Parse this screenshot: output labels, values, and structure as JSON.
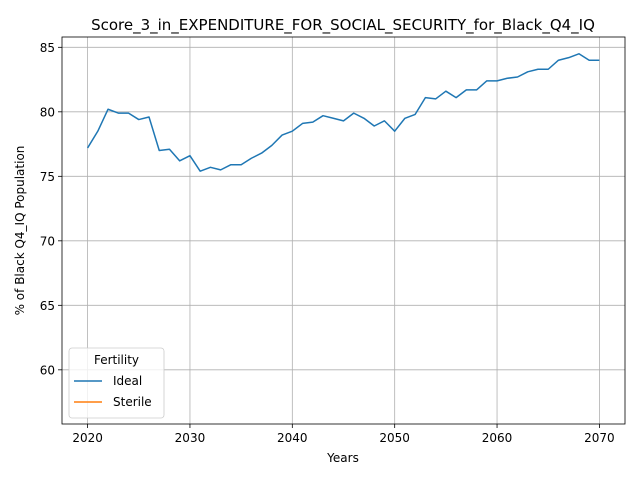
{
  "chart_data": {
    "type": "line",
    "title": "Score_3_in_EXPENDITURE_FOR_SOCIAL_SECURITY_for_Black_Q4_IQ",
    "xlabel": "Years",
    "ylabel": "% of Black Q4_IQ Population",
    "xlim": [
      2017.5,
      2072.5
    ],
    "ylim": [
      55.8,
      85.8
    ],
    "xticks": [
      2020,
      2030,
      2040,
      2050,
      2060,
      2070
    ],
    "yticks": [
      60,
      65,
      70,
      75,
      80,
      85
    ],
    "grid": true,
    "legend": {
      "title": "Fertility",
      "placement": "lower-left"
    },
    "series": [
      {
        "name": "Ideal",
        "color": "#1f77b4",
        "x": [
          2020,
          2021,
          2022,
          2023,
          2024,
          2025,
          2026,
          2027,
          2028,
          2029,
          2030,
          2031,
          2032,
          2033,
          2034,
          2035,
          2036,
          2037,
          2038,
          2039,
          2040,
          2041,
          2042,
          2043,
          2044,
          2045,
          2046,
          2047,
          2048,
          2049,
          2050,
          2051,
          2052,
          2053,
          2054,
          2055,
          2056,
          2057,
          2058,
          2059,
          2060,
          2061,
          2062,
          2063,
          2064,
          2065,
          2066,
          2067,
          2068,
          2069,
          2070
        ],
        "values": [
          77.2,
          78.5,
          80.2,
          79.9,
          79.9,
          79.4,
          79.6,
          77.0,
          77.1,
          76.2,
          76.6,
          75.4,
          75.7,
          75.5,
          75.9,
          75.9,
          76.4,
          76.8,
          77.4,
          78.2,
          78.5,
          79.1,
          79.2,
          79.7,
          79.5,
          79.3,
          79.9,
          79.5,
          78.9,
          79.3,
          78.5,
          79.5,
          79.8,
          81.1,
          81.0,
          81.6,
          81.1,
          81.7,
          81.7,
          82.4,
          82.4,
          82.6,
          82.7,
          83.1,
          83.3,
          83.3,
          84.0,
          84.2,
          84.5,
          84.0,
          84.0
        ]
      },
      {
        "name": "Sterile",
        "color": "#ff7f0e",
        "x": [],
        "values": []
      }
    ]
  }
}
